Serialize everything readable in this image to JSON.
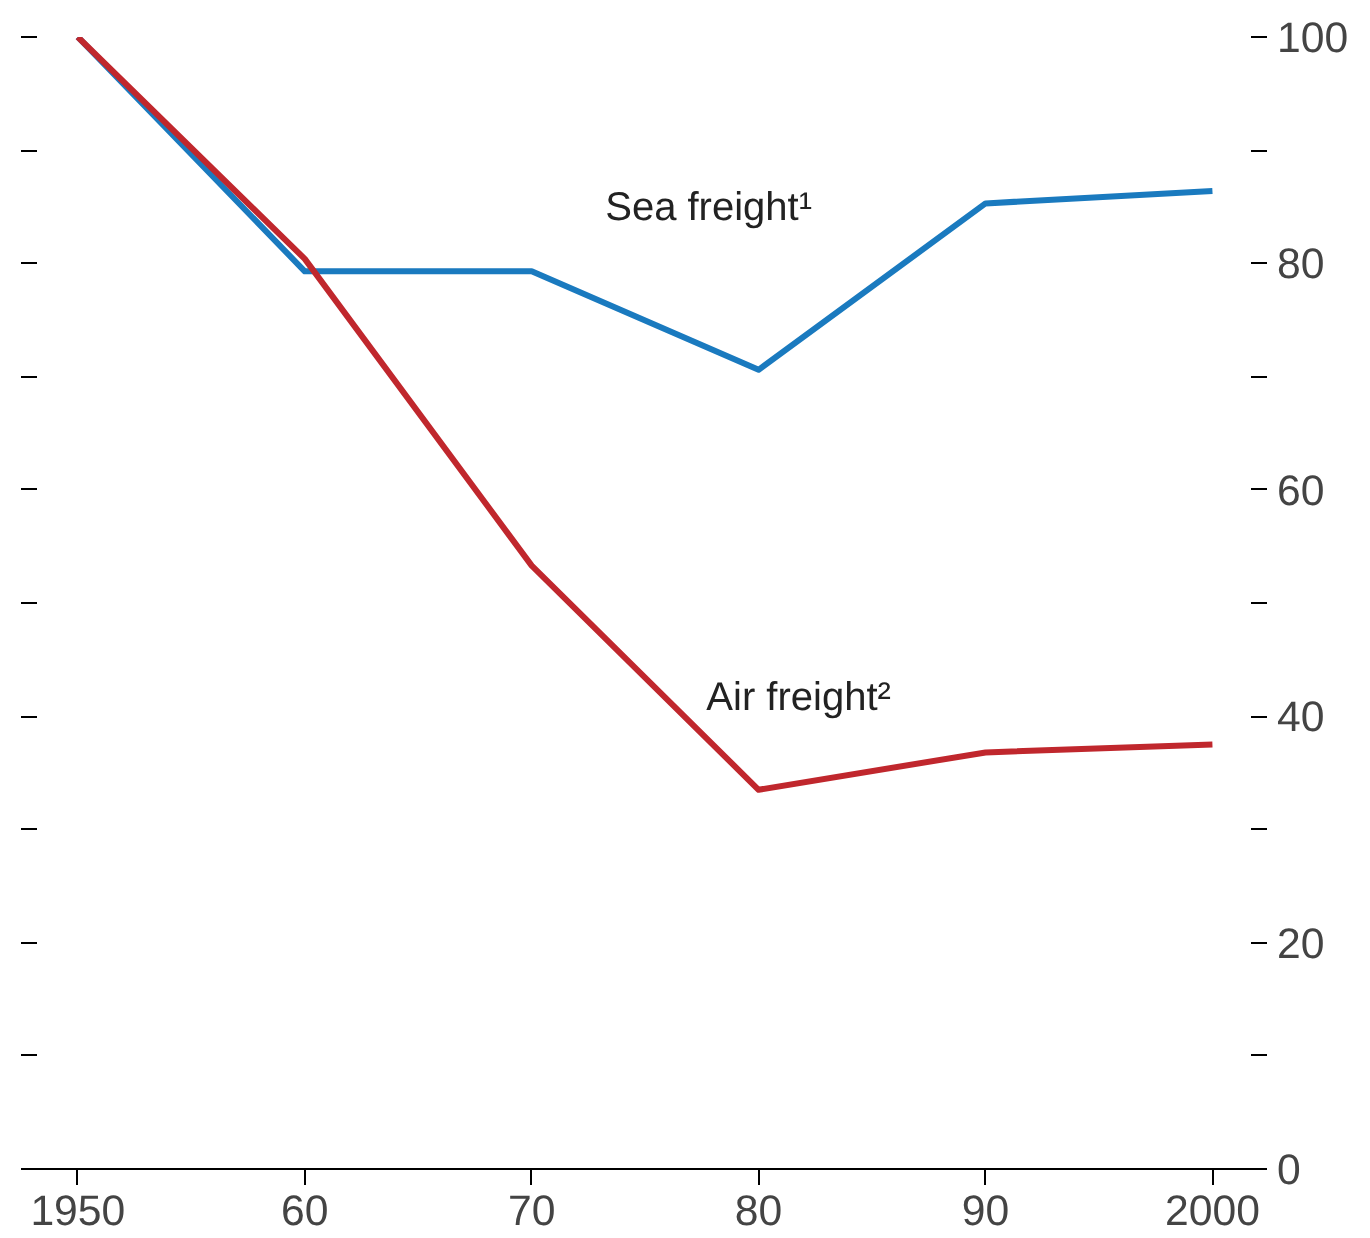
{
  "chart_data": {
    "type": "line",
    "x": [
      1950,
      1960,
      1970,
      1980,
      1990,
      2000
    ],
    "series": [
      {
        "name": "Sea freight¹",
        "color": "#1a7abf",
        "values": [
          100,
          79.3,
          79.3,
          70.6,
          85.3,
          86.4
        ]
      },
      {
        "name": "Air freight²",
        "color": "#c0272d",
        "values": [
          100,
          80.4,
          53.3,
          33.5,
          36.8,
          37.5
        ]
      }
    ],
    "xlim": [
      1948.2,
      2001.7
    ],
    "xticks": [
      {
        "value": 1950,
        "label": "1950"
      },
      {
        "value": 1960,
        "label": "60"
      },
      {
        "value": 1970,
        "label": "70"
      },
      {
        "value": 1980,
        "label": "80"
      },
      {
        "value": 1990,
        "label": "90"
      },
      {
        "value": 2000,
        "label": "2000"
      }
    ],
    "ylim": [
      0,
      100
    ],
    "yticks": [
      0,
      {
        "value": 10,
        "label": null
      },
      20,
      {
        "value": 30,
        "label": null
      },
      40,
      {
        "value": 50,
        "label": null
      },
      60,
      {
        "value": 70,
        "label": null
      },
      80,
      {
        "value": 90,
        "label": null
      },
      100
    ],
    "grid": false,
    "marker": "none",
    "line_style": "solid"
  }
}
